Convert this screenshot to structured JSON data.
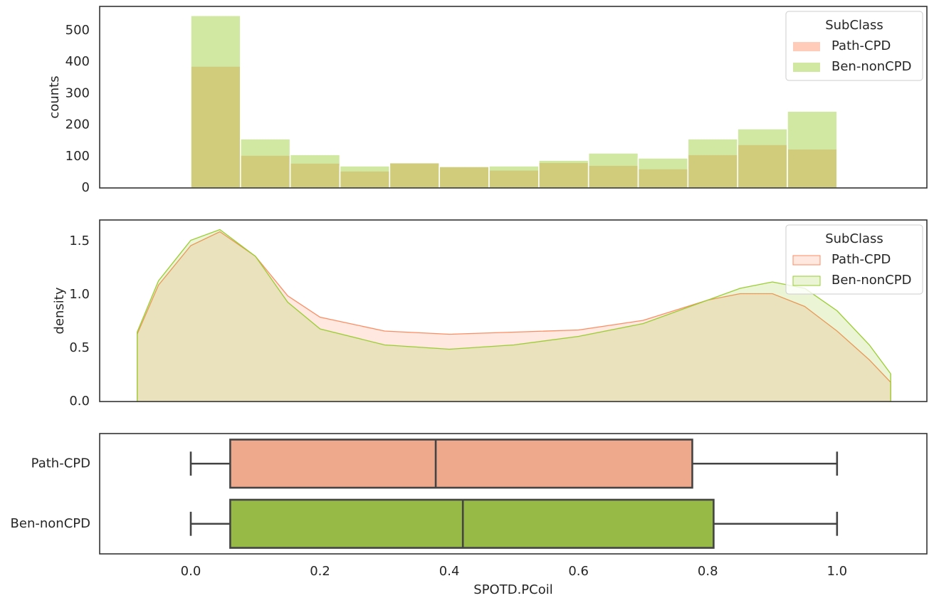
{
  "chart_data": [
    {
      "type": "histogram",
      "ylabel": "counts",
      "bins": [
        0,
        0.0769,
        0.1538,
        0.2308,
        0.3077,
        0.3846,
        0.4615,
        0.5385,
        0.6154,
        0.6923,
        0.7692,
        0.8462,
        0.9231,
        1
      ],
      "series": [
        {
          "name": "Path-CPD",
          "color": "#fc8d62",
          "values": [
            387,
            104,
            79,
            54,
            80,
            68,
            57,
            81,
            72,
            61,
            106,
            138,
            124
          ]
        },
        {
          "name": "Ben-nonCPD",
          "color": "#9acd32",
          "values": [
            548,
            156,
            106,
            70,
            80,
            68,
            70,
            88,
            111,
            95,
            156,
            188,
            244
          ]
        }
      ],
      "legend_title": "SubClass",
      "legend": "upper right",
      "xlim": [
        -0.141,
        1.139
      ],
      "ylim": [
        0,
        577
      ],
      "yticks": [
        0,
        100,
        200,
        300,
        400,
        500
      ]
    },
    {
      "type": "kde",
      "ylabel": "density",
      "x": [
        -0.083,
        -0.05,
        0,
        0.045,
        0.1,
        0.15,
        0.2,
        0.3,
        0.4,
        0.5,
        0.6,
        0.7,
        0.8,
        0.85,
        0.9,
        0.95,
        1.0,
        1.05,
        1.083
      ],
      "series": [
        {
          "name": "Path-CPD",
          "color": "#fc8d62",
          "values": [
            0.63,
            1.09,
            1.46,
            1.59,
            1.36,
            0.99,
            0.79,
            0.66,
            0.63,
            0.65,
            0.67,
            0.76,
            0.95,
            1.01,
            1.01,
            0.89,
            0.66,
            0.39,
            0.18
          ]
        },
        {
          "name": "Ben-nonCPD",
          "color": "#9acd32",
          "values": [
            0.65,
            1.13,
            1.51,
            1.61,
            1.36,
            0.93,
            0.68,
            0.53,
            0.49,
            0.53,
            0.61,
            0.73,
            0.95,
            1.06,
            1.12,
            1.06,
            0.85,
            0.53,
            0.26
          ]
        }
      ],
      "legend_title": "SubClass",
      "legend": "upper right",
      "xlim": [
        -0.141,
        1.139
      ],
      "ylim": [
        0,
        1.7
      ],
      "yticks": [
        {
          "value": 0,
          "label": "0.0"
        },
        0.5,
        {
          "value": 1,
          "label": "1.0"
        },
        1.5
      ]
    },
    {
      "type": "box",
      "xlabel": "SPOTD.PCoil",
      "categories": [
        "Path-CPD",
        "Ben-nonCPD"
      ],
      "boxes": [
        {
          "low": 0,
          "q1": 0.061,
          "median": 0.379,
          "q3": 0.776,
          "high": 1.0,
          "color": "#eea88c"
        },
        {
          "low": 0,
          "q1": 0.061,
          "median": 0.421,
          "q3": 0.809,
          "high": 1.0,
          "color": "#96ba45"
        }
      ],
      "xlim": [
        -0.141,
        1.139
      ],
      "xticks": [
        {
          "value": 0,
          "label": "0.0"
        },
        0.2,
        0.4,
        0.6,
        0.8,
        {
          "value": 1,
          "label": "1.0"
        }
      ]
    }
  ]
}
